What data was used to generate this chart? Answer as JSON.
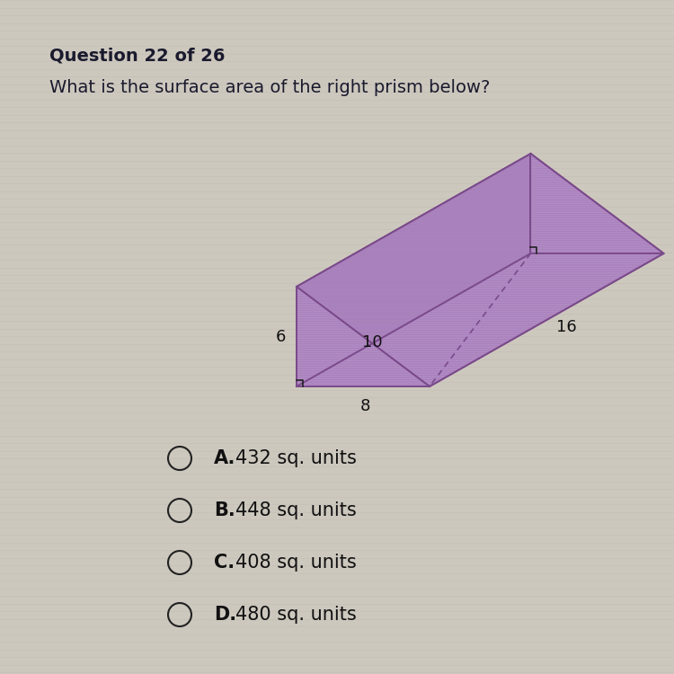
{
  "title": "Question 22 of 26",
  "question": "What is the surface area of the right prism below?",
  "bg_color": "#cdc8be",
  "prism_fill": "#c9a8d8",
  "prism_edge": "#7a4a8a",
  "prism_hatch_color": "#a880bb",
  "dim_6": "6",
  "dim_8": "8",
  "dim_10": "10",
  "dim_16": "16",
  "choices": [
    {
      "letter": "A.",
      "text": "432 sq. units"
    },
    {
      "letter": "B.",
      "text": "448 sq. units"
    },
    {
      "letter": "C.",
      "text": "408 sq. units"
    },
    {
      "letter": "D.",
      "text": "480 sq. units"
    }
  ],
  "choice_fontsize": 15,
  "title_fontsize": 14,
  "question_fontsize": 14,
  "label_fontsize": 13
}
